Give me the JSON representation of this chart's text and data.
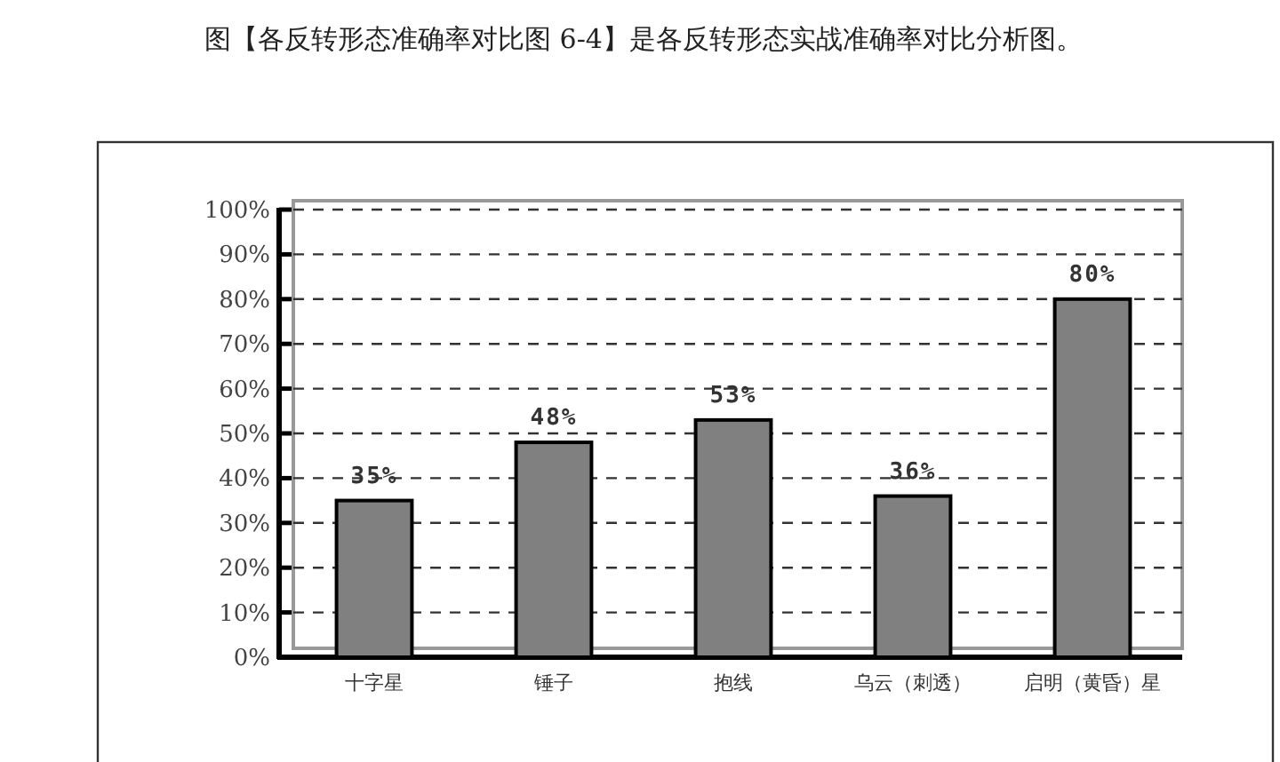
{
  "chart_data": {
    "type": "bar",
    "title": "图【各反转形态准确率对比图 6-4】是各反转形态实战准确率对比分析图。",
    "categories": [
      "十字星",
      "锤子",
      "抱线",
      "乌云（刺透）",
      "启明（黄昏）星"
    ],
    "values": [
      35,
      48,
      53,
      36,
      80
    ],
    "value_labels": [
      "35%",
      "48%",
      "53%",
      "36%",
      "80%"
    ],
    "color": "#808080",
    "ylim": [
      0,
      100
    ],
    "yticks": [
      {
        "value": 0,
        "label": "0%"
      },
      {
        "value": 10,
        "label": "10%"
      },
      {
        "value": 20,
        "label": "20%"
      },
      {
        "value": 30,
        "label": "30%"
      },
      {
        "value": 40,
        "label": "40%"
      },
      {
        "value": 50,
        "label": "50%"
      },
      {
        "value": 60,
        "label": "60%"
      },
      {
        "value": 70,
        "label": "70%"
      },
      {
        "value": 80,
        "label": "80%"
      },
      {
        "value": 90,
        "label": "90%"
      },
      {
        "value": 100,
        "label": "100%"
      }
    ],
    "grid": "y"
  }
}
